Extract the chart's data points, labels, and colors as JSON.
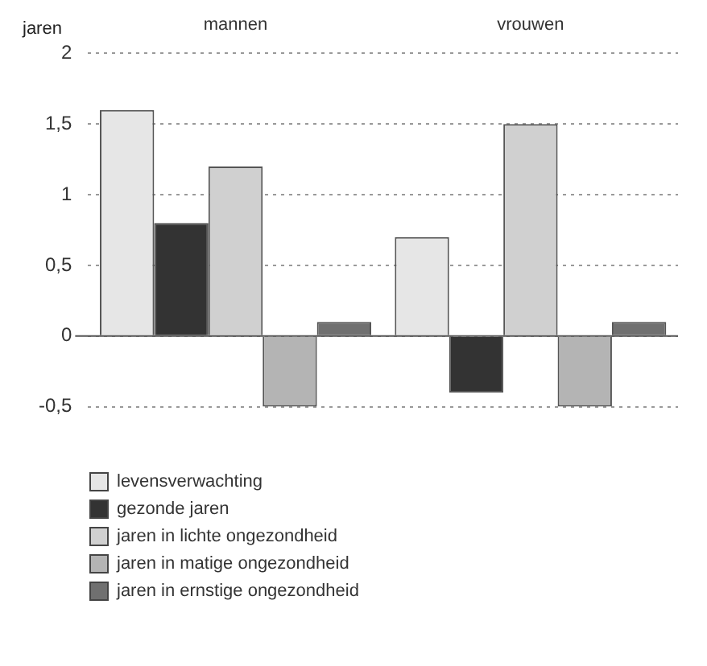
{
  "chart_data": {
    "type": "bar",
    "ylabel": "jaren",
    "categories": [
      "mannen",
      "vrouwen"
    ],
    "series": [
      {
        "name": "levensverwachting",
        "color": "#e6e6e6",
        "values": [
          1.6,
          0.7
        ]
      },
      {
        "name": "gezonde jaren",
        "color": "#333333",
        "values": [
          0.8,
          -0.4
        ]
      },
      {
        "name": "jaren in lichte ongezondheid",
        "color": "#d0d0d0",
        "values": [
          1.2,
          1.5
        ]
      },
      {
        "name": "jaren in matige ongezondheid",
        "color": "#b4b4b4",
        "values": [
          -0.5,
          -0.5
        ]
      },
      {
        "name": "jaren in ernstige ongezondheid",
        "color": "#707070",
        "values": [
          0.1,
          0.1
        ]
      }
    ],
    "ylim": [
      -0.5,
      2
    ],
    "yticks": [
      {
        "value": -0.5,
        "label": "-0,5"
      },
      0,
      {
        "value": 0.5,
        "label": "0,5"
      },
      1,
      {
        "value": 1.5,
        "label": "1,5"
      },
      2
    ],
    "grid": "y",
    "legend": "bottom left"
  }
}
